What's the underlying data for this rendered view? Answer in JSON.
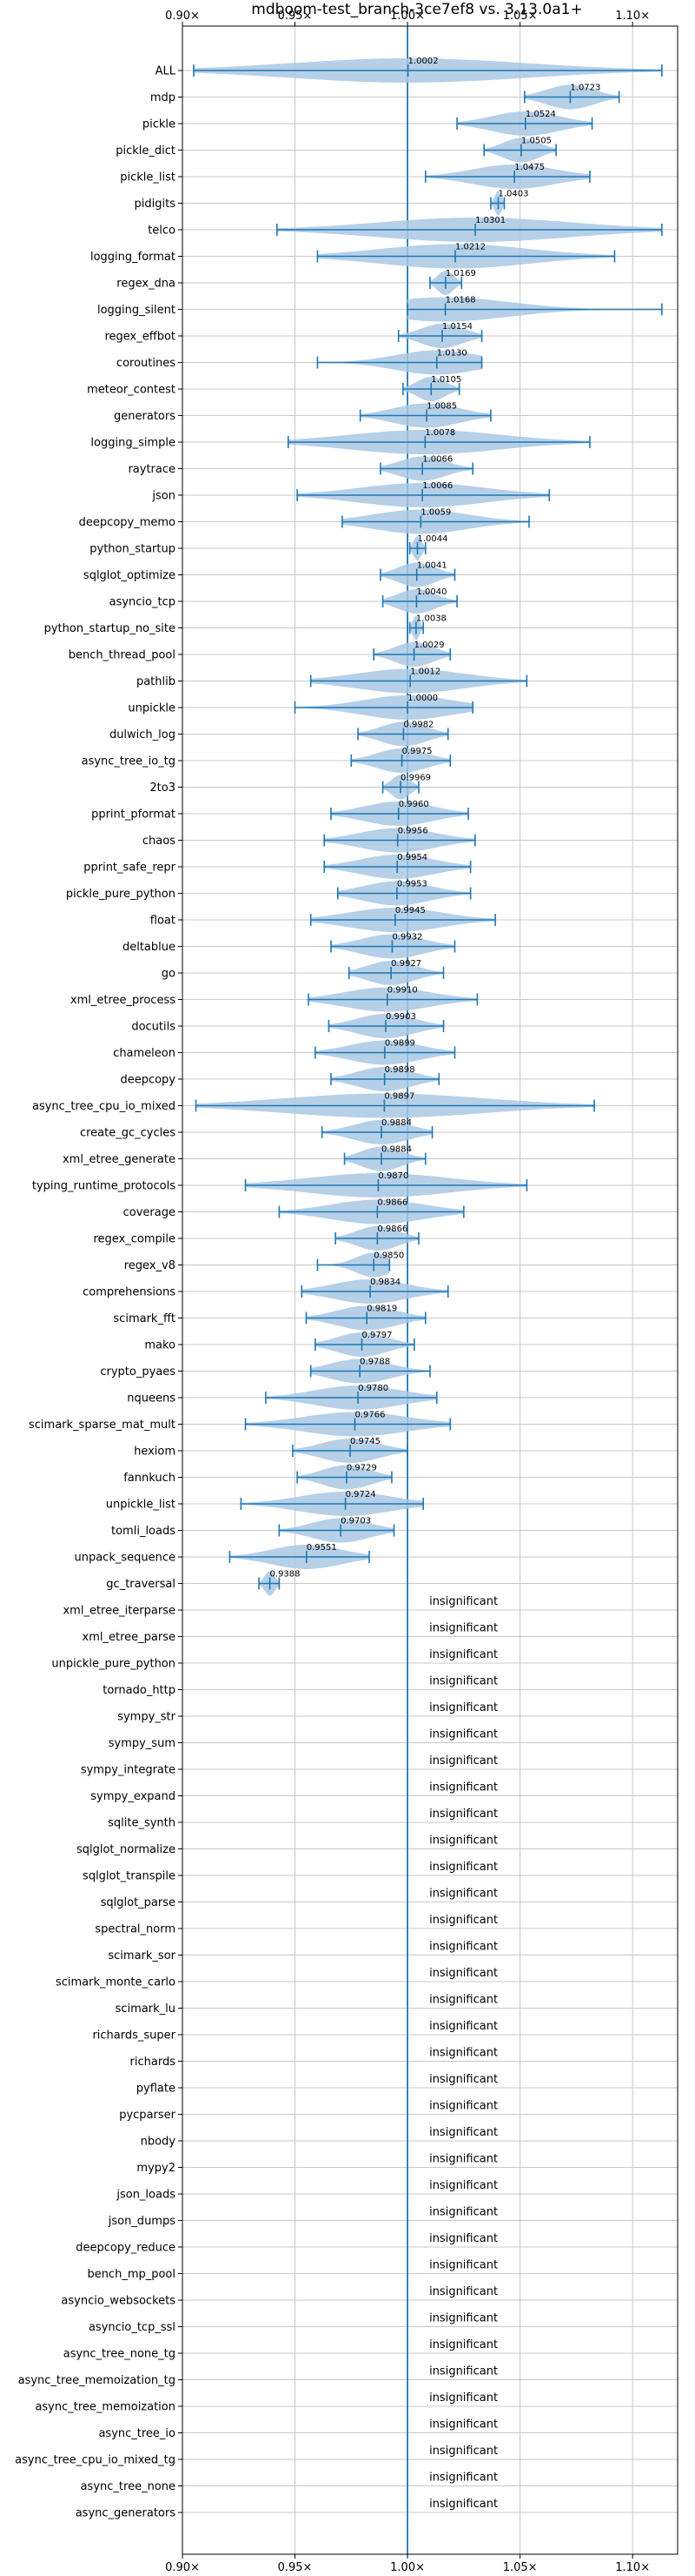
{
  "chart_data": {
    "type": "violin",
    "title": "mdboom-test_branch-3ce7ef8 vs. 3.13.0a1+",
    "xlim": [
      0.9,
      1.12
    ],
    "xticks": [
      0.9,
      0.95,
      1.0,
      1.05,
      1.1
    ],
    "xtick_labels": [
      "0.90×",
      "0.95×",
      "1.00×",
      "1.05×",
      "1.10×"
    ],
    "reference_line": 1.0,
    "grid": true,
    "colors": {
      "violin": "#a9c8e4",
      "line": "#1f77b4",
      "grid": "#c8c8c8"
    },
    "categories": [
      "ALL",
      "mdp",
      "pickle",
      "pickle_dict",
      "pickle_list",
      "pidigits",
      "telco",
      "logging_format",
      "regex_dna",
      "logging_silent",
      "regex_effbot",
      "coroutines",
      "meteor_contest",
      "generators",
      "logging_simple",
      "raytrace",
      "json",
      "deepcopy_memo",
      "python_startup",
      "sqlglot_optimize",
      "asyncio_tcp",
      "python_startup_no_site",
      "bench_thread_pool",
      "pathlib",
      "unpickle",
      "dulwich_log",
      "async_tree_io_tg",
      "2to3",
      "pprint_pformat",
      "chaos",
      "pprint_safe_repr",
      "pickle_pure_python",
      "float",
      "deltablue",
      "go",
      "xml_etree_process",
      "docutils",
      "chameleon",
      "deepcopy",
      "async_tree_cpu_io_mixed",
      "create_gc_cycles",
      "xml_etree_generate",
      "typing_runtime_protocols",
      "coverage",
      "regex_compile",
      "regex_v8",
      "comprehensions",
      "scimark_fft",
      "mako",
      "crypto_pyaes",
      "nqueens",
      "scimark_sparse_mat_mult",
      "hexiom",
      "fannkuch",
      "unpickle_list",
      "tomli_loads",
      "unpack_sequence",
      "gc_traversal",
      "xml_etree_iterparse",
      "xml_etree_parse",
      "unpickle_pure_python",
      "tornado_http",
      "sympy_str",
      "sympy_sum",
      "sympy_integrate",
      "sympy_expand",
      "sqlite_synth",
      "sqlglot_normalize",
      "sqlglot_transpile",
      "sqlglot_parse",
      "spectral_norm",
      "scimark_sor",
      "scimark_monte_carlo",
      "scimark_lu",
      "richards_super",
      "richards",
      "pyflate",
      "pycparser",
      "nbody",
      "mypy2",
      "json_loads",
      "json_dumps",
      "deepcopy_reduce",
      "bench_mp_pool",
      "asyncio_websockets",
      "asyncio_tcp_ssl",
      "async_tree_none_tg",
      "async_tree_memoization_tg",
      "async_tree_memoization",
      "async_tree_io",
      "async_tree_cpu_io_mixed_tg",
      "async_tree_none",
      "async_generators"
    ],
    "series": [
      {
        "category": "ALL",
        "median": 1.0002,
        "label": "1.0002",
        "min": 0.905,
        "max": 1.113
      },
      {
        "category": "mdp",
        "median": 1.0723,
        "label": "1.0723",
        "min": 1.052,
        "max": 1.094
      },
      {
        "category": "pickle",
        "median": 1.0524,
        "label": "1.0524",
        "min": 1.022,
        "max": 1.082
      },
      {
        "category": "pickle_dict",
        "median": 1.0505,
        "label": "1.0505",
        "min": 1.034,
        "max": 1.066
      },
      {
        "category": "pickle_list",
        "median": 1.0475,
        "label": "1.0475",
        "min": 1.008,
        "max": 1.081
      },
      {
        "category": "pidigits",
        "median": 1.0403,
        "label": "1.0403",
        "min": 1.037,
        "max": 1.043
      },
      {
        "category": "telco",
        "median": 1.0301,
        "label": "1.0301",
        "min": 0.942,
        "max": 1.113
      },
      {
        "category": "logging_format",
        "median": 1.0212,
        "label": "1.0212",
        "min": 0.96,
        "max": 1.092
      },
      {
        "category": "regex_dna",
        "median": 1.0169,
        "label": "1.0169",
        "min": 1.01,
        "max": 1.024
      },
      {
        "category": "logging_silent",
        "median": 1.0168,
        "label": "1.0168",
        "min": 1.0,
        "max": 1.113
      },
      {
        "category": "regex_effbot",
        "median": 1.0154,
        "label": "1.0154",
        "min": 0.996,
        "max": 1.033
      },
      {
        "category": "coroutines",
        "median": 1.013,
        "label": "1.0130",
        "min": 0.96,
        "max": 1.033
      },
      {
        "category": "meteor_contest",
        "median": 1.0105,
        "label": "1.0105",
        "min": 0.998,
        "max": 1.023
      },
      {
        "category": "generators",
        "median": 1.0085,
        "label": "1.0085",
        "min": 0.979,
        "max": 1.037
      },
      {
        "category": "logging_simple",
        "median": 1.0078,
        "label": "1.0078",
        "min": 0.947,
        "max": 1.081
      },
      {
        "category": "raytrace",
        "median": 1.0066,
        "label": "1.0066",
        "min": 0.988,
        "max": 1.029
      },
      {
        "category": "json",
        "median": 1.0066,
        "label": "1.0066",
        "min": 0.951,
        "max": 1.063
      },
      {
        "category": "deepcopy_memo",
        "median": 1.0059,
        "label": "1.0059",
        "min": 0.971,
        "max": 1.054
      },
      {
        "category": "python_startup",
        "median": 1.0044,
        "label": "1.0044",
        "min": 1.001,
        "max": 1.008
      },
      {
        "category": "sqlglot_optimize",
        "median": 1.0041,
        "label": "1.0041",
        "min": 0.988,
        "max": 1.021
      },
      {
        "category": "asyncio_tcp",
        "median": 1.004,
        "label": "1.0040",
        "min": 0.989,
        "max": 1.022
      },
      {
        "category": "python_startup_no_site",
        "median": 1.0038,
        "label": "1.0038",
        "min": 1.001,
        "max": 1.007
      },
      {
        "category": "bench_thread_pool",
        "median": 1.0029,
        "label": "1.0029",
        "min": 0.985,
        "max": 1.019
      },
      {
        "category": "pathlib",
        "median": 1.0012,
        "label": "1.0012",
        "min": 0.957,
        "max": 1.053
      },
      {
        "category": "unpickle",
        "median": 1.0,
        "label": "1.0000",
        "min": 0.95,
        "max": 1.029
      },
      {
        "category": "dulwich_log",
        "median": 0.9982,
        "label": "0.9982",
        "min": 0.978,
        "max": 1.018
      },
      {
        "category": "async_tree_io_tg",
        "median": 0.9975,
        "label": "0.9975",
        "min": 0.975,
        "max": 1.019
      },
      {
        "category": "2to3",
        "median": 0.9969,
        "label": "0.9969",
        "min": 0.989,
        "max": 1.005
      },
      {
        "category": "pprint_pformat",
        "median": 0.996,
        "label": "0.9960",
        "min": 0.966,
        "max": 1.027
      },
      {
        "category": "chaos",
        "median": 0.9956,
        "label": "0.9956",
        "min": 0.963,
        "max": 1.03
      },
      {
        "category": "pprint_safe_repr",
        "median": 0.9954,
        "label": "0.9954",
        "min": 0.963,
        "max": 1.028
      },
      {
        "category": "pickle_pure_python",
        "median": 0.9953,
        "label": "0.9953",
        "min": 0.969,
        "max": 1.028
      },
      {
        "category": "float",
        "median": 0.9945,
        "label": "0.9945",
        "min": 0.957,
        "max": 1.039
      },
      {
        "category": "deltablue",
        "median": 0.9932,
        "label": "0.9932",
        "min": 0.966,
        "max": 1.021
      },
      {
        "category": "go",
        "median": 0.9927,
        "label": "0.9927",
        "min": 0.974,
        "max": 1.016
      },
      {
        "category": "xml_etree_process",
        "median": 0.991,
        "label": "0.9910",
        "min": 0.956,
        "max": 1.031
      },
      {
        "category": "docutils",
        "median": 0.9903,
        "label": "0.9903",
        "min": 0.965,
        "max": 1.016
      },
      {
        "category": "chameleon",
        "median": 0.9899,
        "label": "0.9899",
        "min": 0.959,
        "max": 1.021
      },
      {
        "category": "deepcopy",
        "median": 0.9898,
        "label": "0.9898",
        "min": 0.966,
        "max": 1.014
      },
      {
        "category": "async_tree_cpu_io_mixed",
        "median": 0.9897,
        "label": "0.9897",
        "min": 0.906,
        "max": 1.083
      },
      {
        "category": "create_gc_cycles",
        "median": 0.9884,
        "label": "0.9884",
        "min": 0.962,
        "max": 1.011
      },
      {
        "category": "xml_etree_generate",
        "median": 0.9884,
        "label": "0.9884",
        "min": 0.972,
        "max": 1.008
      },
      {
        "category": "typing_runtime_protocols",
        "median": 0.987,
        "label": "0.9870",
        "min": 0.928,
        "max": 1.053
      },
      {
        "category": "coverage",
        "median": 0.9866,
        "label": "0.9866",
        "min": 0.943,
        "max": 1.025
      },
      {
        "category": "regex_compile",
        "median": 0.9866,
        "label": "0.9866",
        "min": 0.968,
        "max": 1.005
      },
      {
        "category": "regex_v8",
        "median": 0.985,
        "label": "0.9850",
        "min": 0.96,
        "max": 0.992
      },
      {
        "category": "comprehensions",
        "median": 0.9834,
        "label": "0.9834",
        "min": 0.953,
        "max": 1.018
      },
      {
        "category": "scimark_fft",
        "median": 0.9819,
        "label": "0.9819",
        "min": 0.955,
        "max": 1.008
      },
      {
        "category": "mako",
        "median": 0.9797,
        "label": "0.9797",
        "min": 0.959,
        "max": 1.003
      },
      {
        "category": "crypto_pyaes",
        "median": 0.9788,
        "label": "0.9788",
        "min": 0.957,
        "max": 1.01
      },
      {
        "category": "nqueens",
        "median": 0.978,
        "label": "0.9780",
        "min": 0.937,
        "max": 1.013
      },
      {
        "category": "scimark_sparse_mat_mult",
        "median": 0.9766,
        "label": "0.9766",
        "min": 0.928,
        "max": 1.019
      },
      {
        "category": "hexiom",
        "median": 0.9745,
        "label": "0.9745",
        "min": 0.949,
        "max": 1.0
      },
      {
        "category": "fannkuch",
        "median": 0.9729,
        "label": "0.9729",
        "min": 0.951,
        "max": 0.993
      },
      {
        "category": "unpickle_list",
        "median": 0.9724,
        "label": "0.9724",
        "min": 0.926,
        "max": 1.007
      },
      {
        "category": "tomli_loads",
        "median": 0.9703,
        "label": "0.9703",
        "min": 0.943,
        "max": 0.994
      },
      {
        "category": "unpack_sequence",
        "median": 0.9551,
        "label": "0.9551",
        "min": 0.921,
        "max": 0.983
      },
      {
        "category": "gc_traversal",
        "median": 0.9388,
        "label": "0.9388",
        "min": 0.934,
        "max": 0.943
      }
    ],
    "insignificant_label": "insignificant",
    "insignificant_categories": [
      "xml_etree_iterparse",
      "xml_etree_parse",
      "unpickle_pure_python",
      "tornado_http",
      "sympy_str",
      "sympy_sum",
      "sympy_integrate",
      "sympy_expand",
      "sqlite_synth",
      "sqlglot_normalize",
      "sqlglot_transpile",
      "sqlglot_parse",
      "spectral_norm",
      "scimark_sor",
      "scimark_monte_carlo",
      "scimark_lu",
      "richards_super",
      "richards",
      "pyflate",
      "pycparser",
      "nbody",
      "mypy2",
      "json_loads",
      "json_dumps",
      "deepcopy_reduce",
      "bench_mp_pool",
      "asyncio_websockets",
      "asyncio_tcp_ssl",
      "async_tree_none_tg",
      "async_tree_memoization_tg",
      "async_tree_memoization",
      "async_tree_io",
      "async_tree_cpu_io_mixed_tg",
      "async_tree_none",
      "async_generators"
    ]
  }
}
